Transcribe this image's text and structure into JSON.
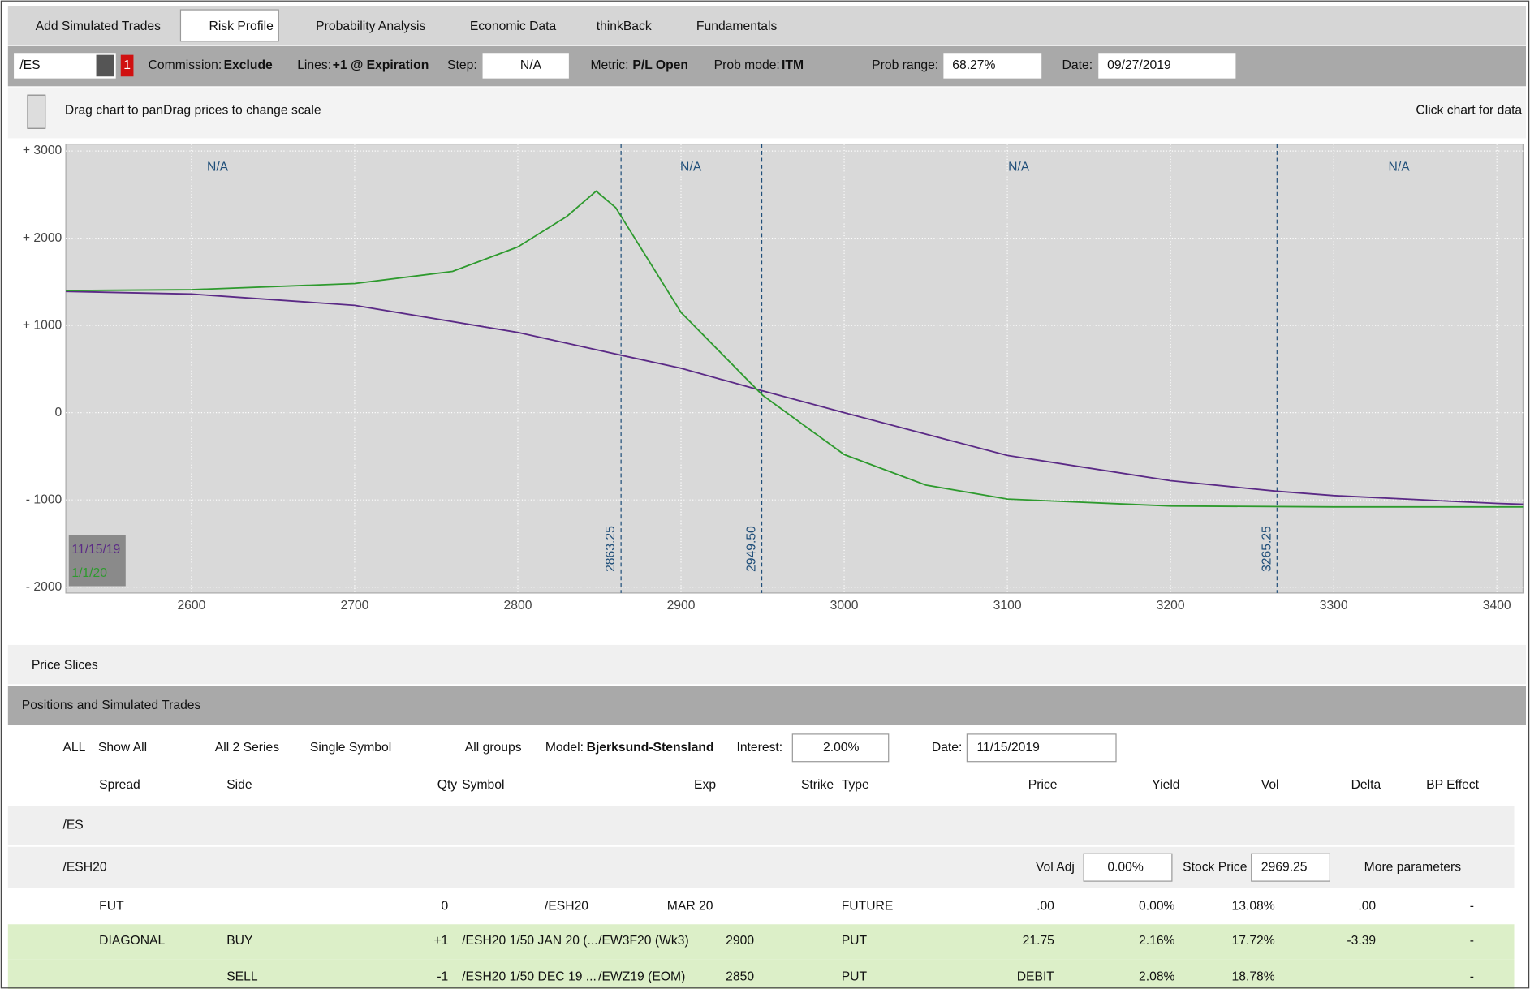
{
  "tabs": [
    "Add Simulated Trades",
    "Risk Profile",
    "Probability Analysis",
    "Economic Data",
    "thinkBack",
    "Fundamentals"
  ],
  "toolbar": {
    "symbol": "/ES",
    "badge": "1",
    "commission_label": "Commission:",
    "commission": "Exclude",
    "lines_label": "Lines:",
    "lines": "+1 @ Expiration",
    "step_label": "Step:",
    "step": "N/A",
    "metric_label": "Metric:",
    "metric": "P/L Open",
    "prob_mode_label": "Prob mode:",
    "prob_mode": "ITM",
    "prob_range_label": "Prob range:",
    "prob_range": "68.27%",
    "date_label": "Date:",
    "date": "09/27/2019"
  },
  "hint": "Drag chart to panDrag prices to change scale",
  "click_hint": "Click chart for data",
  "chart": {
    "type": "line",
    "xlim": [
      2523,
      3416
    ],
    "ylim": [
      -2067,
      3079
    ],
    "xticks": [
      2600,
      2700,
      2800,
      2900,
      3000,
      3100,
      3200,
      3300,
      3400
    ],
    "yticks": [
      {
        "value": 3000,
        "label": "+ 3000"
      },
      {
        "value": 2000,
        "label": "+ 2000"
      },
      {
        "value": 1000,
        "label": "+ 1000"
      },
      0,
      {
        "value": -1000,
        "label": "- 1000"
      },
      {
        "value": -2000,
        "label": "- 2000"
      }
    ],
    "grid": true,
    "series": [
      {
        "name": "11/15/19",
        "color": "#5b2a86",
        "x": [
          2523,
          2600,
          2700,
          2800,
          2863,
          2900,
          2950,
          3000,
          3100,
          3200,
          3265,
          3300,
          3400,
          3416
        ],
        "values": [
          1390,
          1360,
          1230,
          920,
          660,
          510,
          250,
          0,
          -490,
          -780,
          -900,
          -950,
          -1040,
          -1050
        ]
      },
      {
        "name": "1/1/20",
        "color": "#2e9a2e",
        "x": [
          2523,
          2600,
          2700,
          2760,
          2800,
          2830,
          2848,
          2860,
          2900,
          2950,
          3000,
          3050,
          3100,
          3200,
          3300,
          3416
        ],
        "values": [
          1400,
          1410,
          1480,
          1620,
          1900,
          2250,
          2540,
          2350,
          1150,
          200,
          -480,
          -830,
          -990,
          -1070,
          -1080,
          -1080
        ]
      }
    ],
    "vlines": [
      {
        "value": 2863.25,
        "label": "2863.25"
      },
      {
        "value": 2949.5,
        "label": "2949.50"
      },
      {
        "value": 3265.25,
        "label": "3265.25"
      }
    ],
    "regions": [
      {
        "x": 2616,
        "label": "N/A"
      },
      {
        "x": 2906,
        "label": "N/A"
      },
      {
        "x": 3107,
        "label": "N/A"
      },
      {
        "x": 3340,
        "label": "N/A"
      }
    ]
  },
  "price_slices": "Price Slices",
  "positions_title": "Positions and Simulated Trades",
  "filters": {
    "all": "ALL",
    "show": "Show All",
    "series": "All 2 Series",
    "symbol": "Single Symbol",
    "groups": "All groups",
    "model_label": "Model:",
    "model": "Bjerksund-Stensland",
    "interest_label": "Interest:",
    "interest": "2.00%",
    "date_label": "Date:",
    "date": "11/15/2019"
  },
  "columns": [
    "Spread",
    "Side",
    "Qty",
    "Symbol",
    "Exp",
    "Strike",
    "Type",
    "Price",
    "Yield",
    "Vol",
    "Delta",
    "BP Effect"
  ],
  "groups": [
    {
      "name": "/ES"
    },
    {
      "name": "/ESH20",
      "vol_adj_label": "Vol Adj",
      "vol_adj": "0.00%",
      "stock_price_label": "Stock Price",
      "stock_price": "2969.25",
      "more": "More parameters"
    }
  ],
  "rows": [
    {
      "spread": "FUT",
      "qty": "0",
      "symbol": "/ESH20",
      "exp": "MAR 20",
      "type": "FUTURE",
      "price": ".00",
      "yield": "0.00%",
      "vol": "13.08%",
      "delta": ".00",
      "bp": "-"
    },
    {
      "spread": "DIAGONAL",
      "side": "BUY",
      "qty": "+1",
      "symbol": "/ESH20 1/50 JAN 20 (...",
      "exp": "/EW3F20 (Wk3)",
      "strike": "2900",
      "type": "PUT",
      "price": "21.75",
      "yield": "2.16%",
      "vol": "17.72%",
      "delta": "-3.39",
      "bp": "-"
    },
    {
      "side": "SELL",
      "qty": "-1",
      "symbol": "/ESH20 1/50 DEC 19 ...",
      "exp": "/EWZ19 (EOM)",
      "strike": "2850",
      "type": "PUT",
      "price": "DEBIT",
      "yield": "2.08%",
      "vol": "18.78%",
      "bp": "-"
    }
  ]
}
